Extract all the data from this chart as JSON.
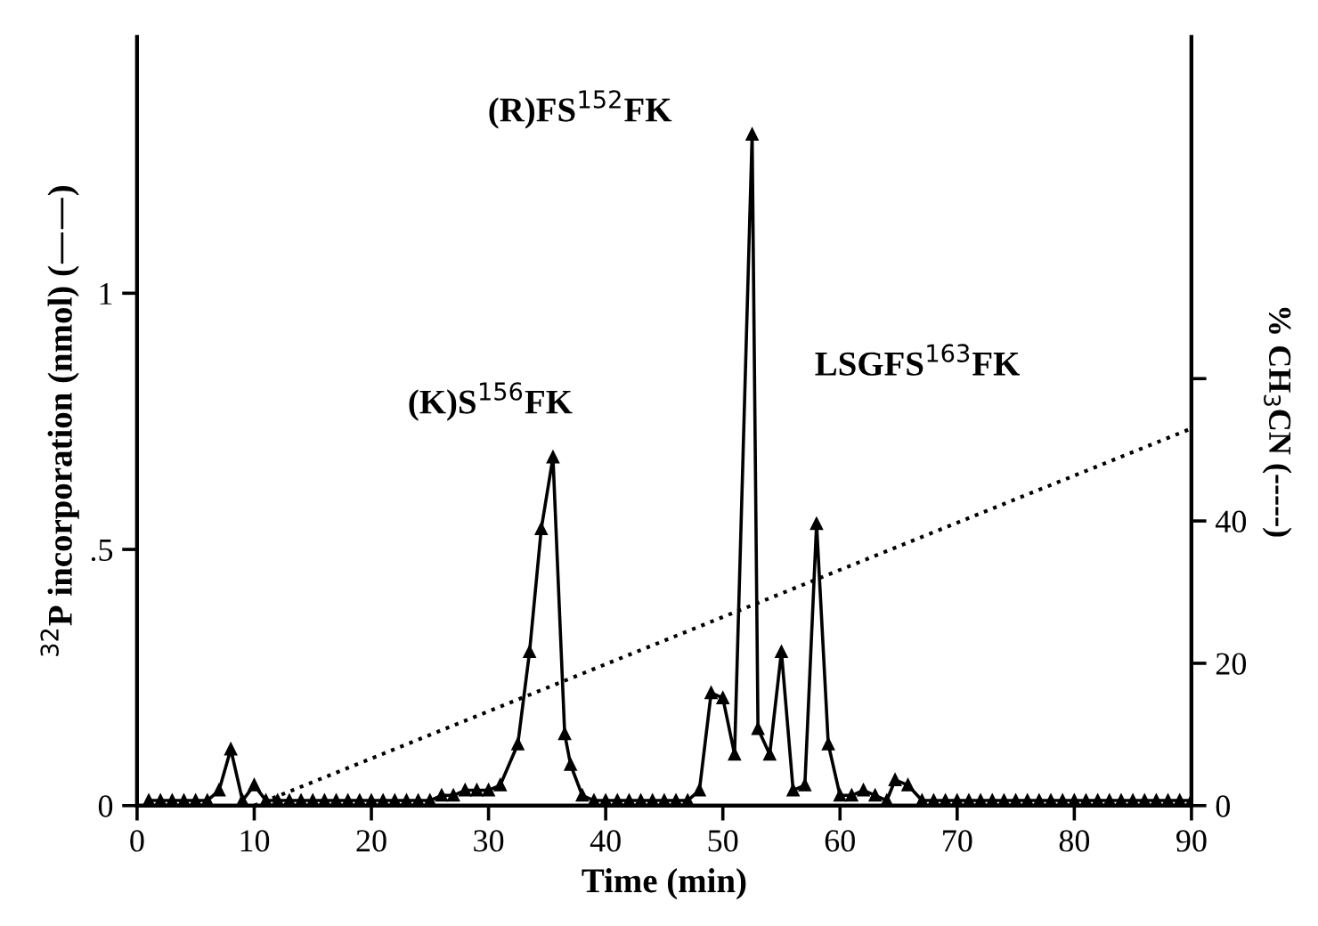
{
  "chart_data": {
    "type": "line",
    "xlabel": "Time (min)",
    "ylabel": "$^{32}$P incorporation (nmol) (——)",
    "y2label": "% CH$_{3}$CN (-----)",
    "xlim": [
      0,
      90
    ],
    "xticks": [
      0,
      10,
      20,
      30,
      40,
      50,
      60,
      70,
      80,
      90
    ],
    "ylim": [
      0,
      1.5
    ],
    "yticks": [
      0,
      {
        "value": 0.5,
        "label": ".5"
      },
      1
    ],
    "y2lim": [
      0,
      108
    ],
    "y2ticks": [
      0,
      20,
      40,
      {
        "value": 60,
        "label": null
      }
    ],
    "grid": false,
    "legend": false,
    "series": [
      {
        "color": "#000000",
        "marker": "triangle",
        "line_style": "solid",
        "x": [
          1,
          2,
          3,
          4,
          5,
          6,
          7,
          8,
          9,
          10,
          11,
          12,
          13,
          14,
          15,
          16,
          17,
          18,
          19,
          20,
          21,
          22,
          23,
          24,
          25,
          26,
          27,
          28,
          29,
          30,
          31,
          32.5,
          33.5,
          34.5,
          35.5,
          36.5,
          37,
          38,
          39,
          40,
          41,
          42,
          43,
          44,
          45,
          46,
          47,
          48,
          49,
          50,
          51,
          52.5,
          53,
          54,
          55,
          56,
          57,
          58,
          59,
          60,
          61,
          62,
          63,
          64,
          64.7,
          65.8,
          67,
          68,
          69,
          70,
          71,
          72,
          73,
          74,
          75,
          76,
          77,
          78,
          79,
          80,
          81,
          82,
          83,
          84,
          85,
          86,
          87,
          88,
          89,
          90
        ],
        "values": [
          0.01,
          0.01,
          0.01,
          0.01,
          0.01,
          0.01,
          0.03,
          0.11,
          0.01,
          0.04,
          0.01,
          0.01,
          0.01,
          0.01,
          0.01,
          0.01,
          0.01,
          0.01,
          0.01,
          0.01,
          0.01,
          0.01,
          0.01,
          0.01,
          0.01,
          0.02,
          0.02,
          0.03,
          0.03,
          0.03,
          0.04,
          0.12,
          0.3,
          0.54,
          0.68,
          0.14,
          0.08,
          0.02,
          0.01,
          0.01,
          0.01,
          0.01,
          0.01,
          0.01,
          0.01,
          0.01,
          0.01,
          0.03,
          0.22,
          0.21,
          0.1,
          1.31,
          0.15,
          0.1,
          0.3,
          0.03,
          0.04,
          0.55,
          0.12,
          0.02,
          0.02,
          0.03,
          0.02,
          0.01,
          0.05,
          0.04,
          0.01,
          0.01,
          0.01,
          0.01,
          0.01,
          0.01,
          0.01,
          0.01,
          0.01,
          0.01,
          0.01,
          0.01,
          0.01,
          0.01,
          0.01,
          0.01,
          0.01,
          0.01,
          0.01,
          0.01,
          0.01,
          0.01,
          0.01,
          0.01
        ]
      },
      {
        "color": "#000000",
        "marker": "none",
        "line_style": "dotted",
        "axis": "y2",
        "x": [
          10,
          90
        ],
        "values": [
          0,
          53
        ]
      }
    ],
    "annotations": [
      "(K)S$^{156}$FK",
      "(R)FS$^{152}$FK",
      "LSGFS$^{163}$FK"
    ]
  }
}
